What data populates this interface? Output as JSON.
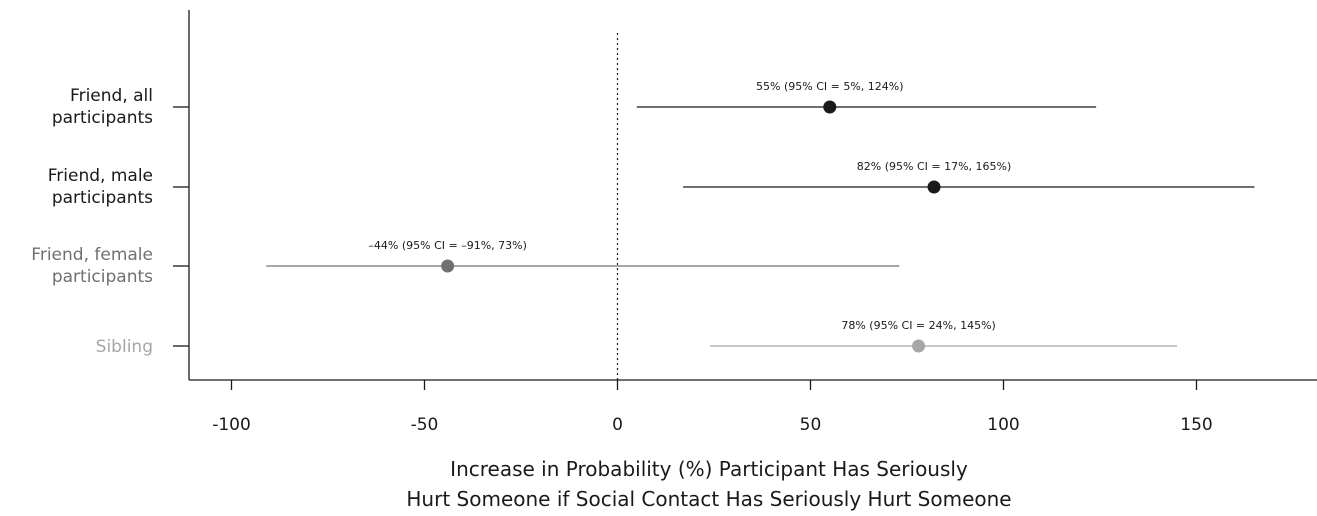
{
  "chart_data": {
    "type": "forest",
    "xlabel_line1": "Increase in Probability (%) Participant Has Seriously",
    "xlabel_line2": "Hurt Someone if Social Contact Has Seriously Hurt Someone",
    "xlim": [
      -110,
      180
    ],
    "xticks": [
      -100,
      -50,
      0,
      50,
      100,
      150
    ],
    "xtick_labels": [
      "-100",
      "-50",
      "0",
      "50",
      "100",
      "150"
    ],
    "reference_line": 0,
    "rows": [
      {
        "label_lines": [
          "Friend, all",
          "participants"
        ],
        "estimate": 55,
        "ci_low": 5,
        "ci_high": 124,
        "annotation": "55% (95% CI = 5%, 124%)",
        "color": "#1a1a1a"
      },
      {
        "label_lines": [
          "Friend, male",
          "participants"
        ],
        "estimate": 82,
        "ci_low": 17,
        "ci_high": 165,
        "annotation": "82% (95% CI = 17%, 165%)",
        "color": "#1a1a1a"
      },
      {
        "label_lines": [
          "Friend, female",
          "participants"
        ],
        "estimate": -44,
        "ci_low": -91,
        "ci_high": 73,
        "annotation": "–44% (95% CI = –91%, 73%)",
        "color": "#707070"
      },
      {
        "label_lines": [
          "Sibling"
        ],
        "estimate": 78,
        "ci_low": 24,
        "ci_high": 145,
        "annotation": "78% (95% CI = 24%, 145%)",
        "color": "#a6a6a6"
      }
    ]
  }
}
